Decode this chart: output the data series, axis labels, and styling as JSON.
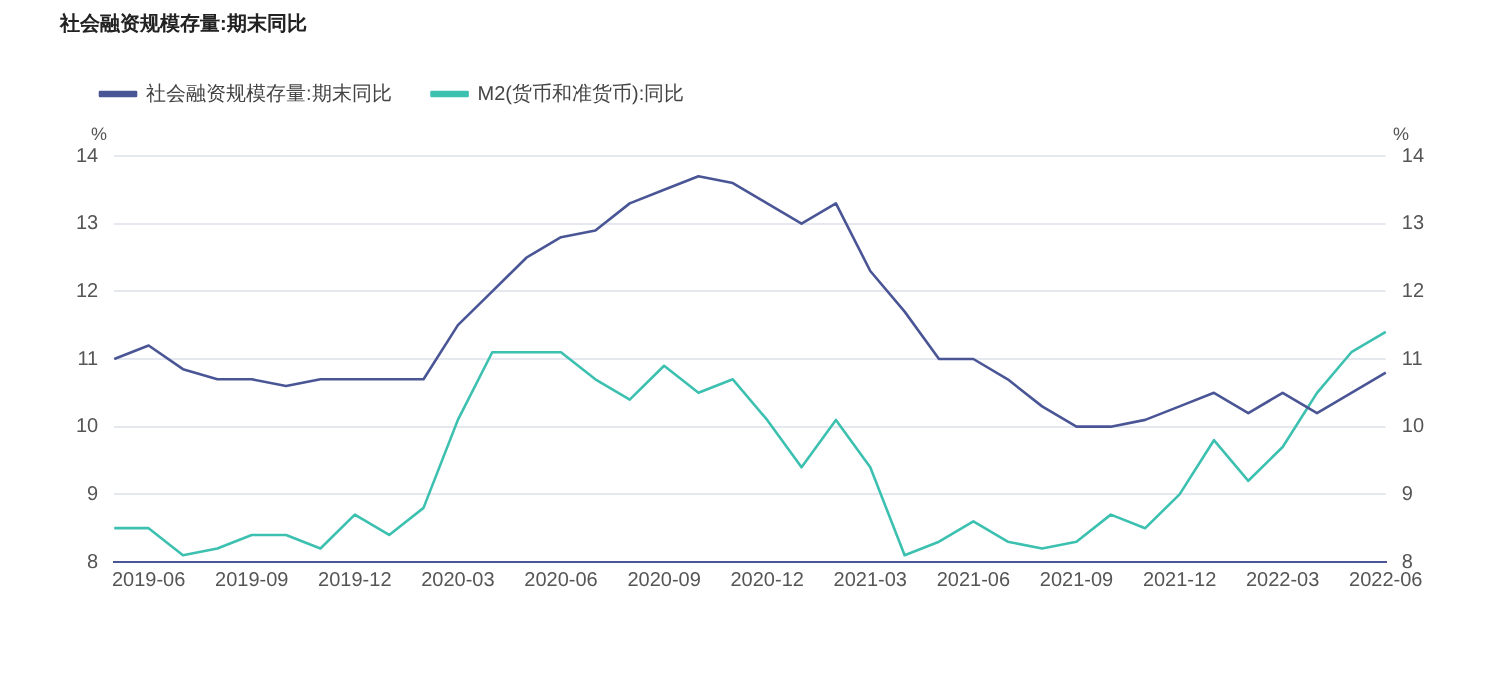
{
  "chart_data": {
    "type": "line",
    "title": "社会融资规模存量:期末同比",
    "ylabel": "%",
    "y2label": "%",
    "categories": [
      null,
      "2019-06",
      null,
      null,
      "2019-09",
      null,
      null,
      "2019-12",
      null,
      null,
      "2020-03",
      null,
      null,
      "2020-06",
      null,
      null,
      "2020-09",
      null,
      null,
      "2020-12",
      null,
      null,
      "2021-03",
      null,
      null,
      "2021-06",
      null,
      null,
      "2021-09",
      null,
      null,
      "2021-12",
      null,
      null,
      "2022-03",
      null,
      null,
      "2022-06"
    ],
    "series": [
      {
        "name": "社会融资规模存量:期末同比",
        "color": "#4a5596",
        "values": [
          11.0,
          11.2,
          10.85,
          10.7,
          10.7,
          10.6,
          10.7,
          10.7,
          10.7,
          10.7,
          11.5,
          12.0,
          12.5,
          12.8,
          12.9,
          13.3,
          13.5,
          13.7,
          13.6,
          13.3,
          13.0,
          13.3,
          12.3,
          11.7,
          11.0,
          11.0,
          10.7,
          10.3,
          10.0,
          10.0,
          10.1,
          10.3,
          10.5,
          10.2,
          10.5,
          10.2,
          10.5,
          10.8
        ]
      },
      {
        "name": "M2(货币和准货币):同比",
        "color": "#3cc0b0",
        "values": [
          8.5,
          8.5,
          8.1,
          8.2,
          8.4,
          8.4,
          8.2,
          8.7,
          8.4,
          8.8,
          10.1,
          11.1,
          11.1,
          11.1,
          10.7,
          10.4,
          10.9,
          10.5,
          10.7,
          10.1,
          9.4,
          10.1,
          9.4,
          8.1,
          8.3,
          8.6,
          8.3,
          8.2,
          8.3,
          8.7,
          8.5,
          9.0,
          9.8,
          9.2,
          9.7,
          10.5,
          11.1,
          11.4
        ]
      }
    ],
    "ylim": [
      8,
      14
    ],
    "yticks": [
      8,
      9,
      10,
      11,
      12,
      13,
      14
    ],
    "y2lim": [
      8,
      14
    ],
    "y2ticks": [
      8,
      9,
      10,
      11,
      12,
      13,
      14
    ],
    "grid": "y",
    "legend": "top left",
    "marker": "none",
    "line_style": "solid"
  }
}
